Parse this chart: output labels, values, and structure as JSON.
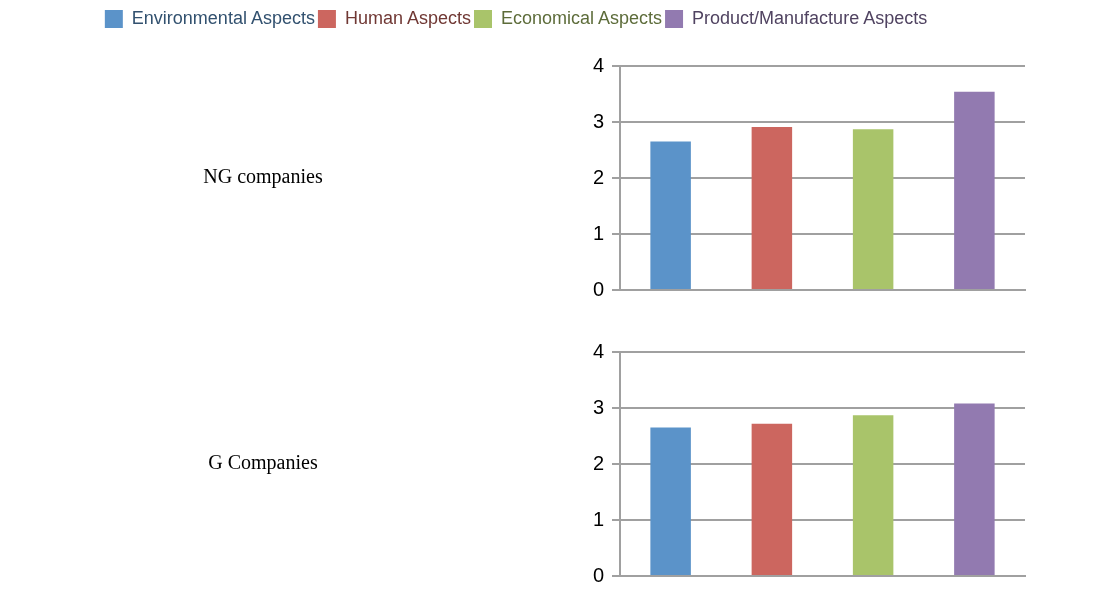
{
  "chart_data": [
    {
      "type": "bar",
      "ylabel": "NG companies",
      "categories": [
        null
      ],
      "ylim": [
        0,
        4
      ],
      "yticks": [
        0,
        1,
        2,
        3,
        4
      ],
      "grid": "y",
      "legend": "top",
      "series": [
        {
          "name": "Environmental Aspects",
          "color": "#5b93c9",
          "values": [
            2.65
          ]
        },
        {
          "name": "Human Aspects",
          "color": "#cc665f",
          "values": [
            2.91
          ]
        },
        {
          "name": "Economical Aspects",
          "color": "#a9c46a",
          "values": [
            2.87
          ]
        },
        {
          "name": "Product/Manufacture Aspects",
          "color": "#927ab0",
          "values": [
            3.54
          ]
        }
      ]
    },
    {
      "type": "bar",
      "ylabel": "G Companies",
      "categories": [
        null
      ],
      "ylim": [
        0,
        4
      ],
      "yticks": [
        0,
        1,
        2,
        3,
        4
      ],
      "grid": "y",
      "legend": false,
      "series": [
        {
          "color": "#5b93c9",
          "values": [
            2.65
          ]
        },
        {
          "color": "#cc665f",
          "values": [
            2.72
          ]
        },
        {
          "color": "#a9c46a",
          "values": [
            2.87
          ]
        },
        {
          "color": "#927ab0",
          "values": [
            3.08
          ]
        }
      ]
    }
  ]
}
